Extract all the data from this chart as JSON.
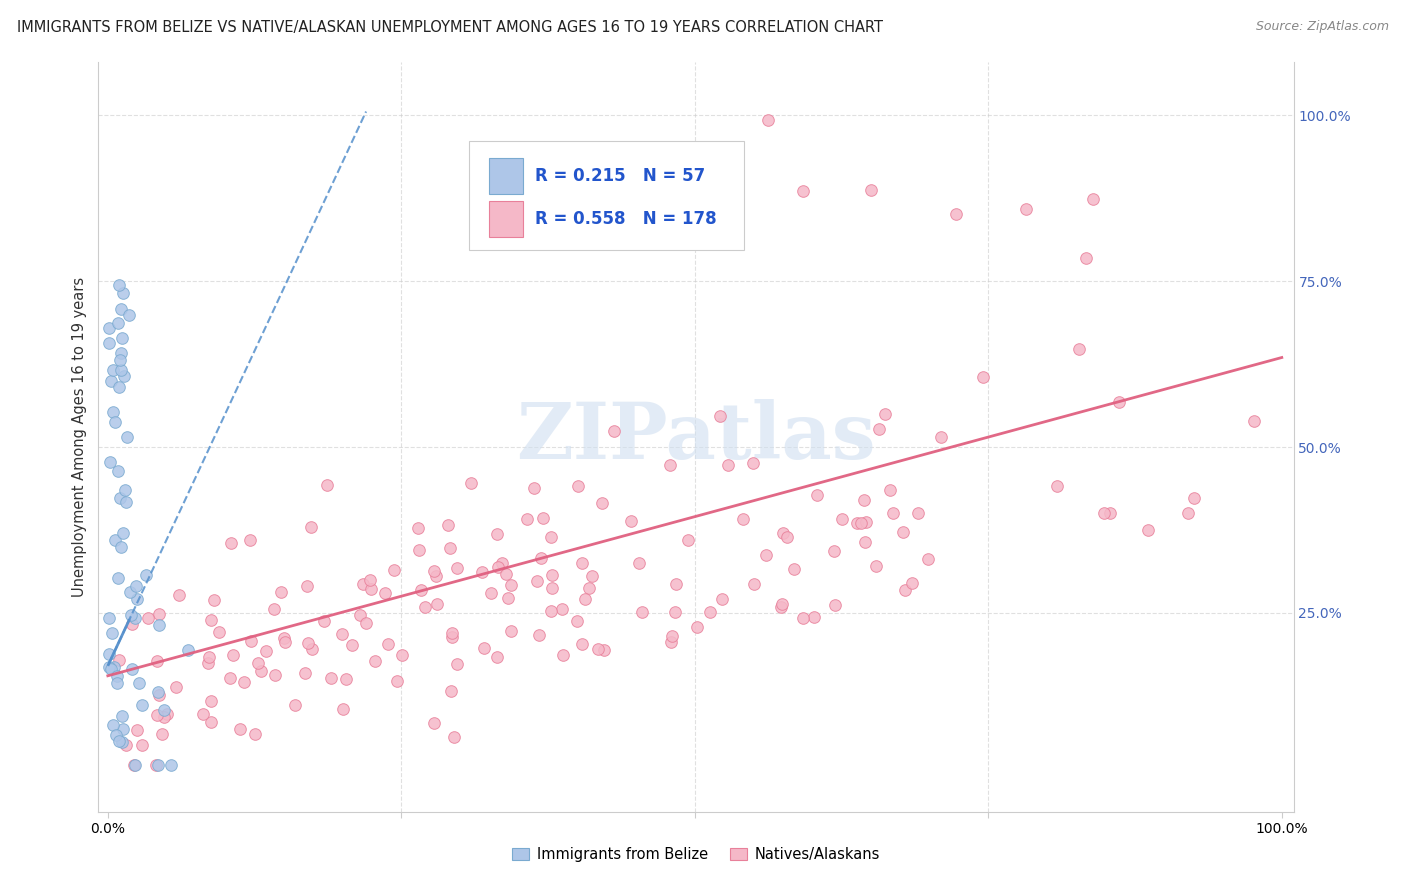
{
  "title": "IMMIGRANTS FROM BELIZE VS NATIVE/ALASKAN UNEMPLOYMENT AMONG AGES 16 TO 19 YEARS CORRELATION CHART",
  "source": "Source: ZipAtlas.com",
  "ylabel": "Unemployment Among Ages 16 to 19 years",
  "legend_R1": "0.215",
  "legend_N1": "57",
  "legend_R2": "0.558",
  "legend_N2": "178",
  "blue_color": "#aec6e8",
  "pink_color": "#f5b8c8",
  "blue_edge": "#7aaad0",
  "pink_edge": "#e8809a",
  "trendline_blue_color": "#5590cc",
  "trendline_pink_color": "#e06080",
  "watermark_color": "#d0dff0",
  "right_tick_color": "#4466bb",
  "grid_color": "#cccccc",
  "title_fontsize": 10.5,
  "source_fontsize": 9,
  "axis_label_fontsize": 10,
  "legend_fontsize": 12,
  "scatter_size": 70
}
